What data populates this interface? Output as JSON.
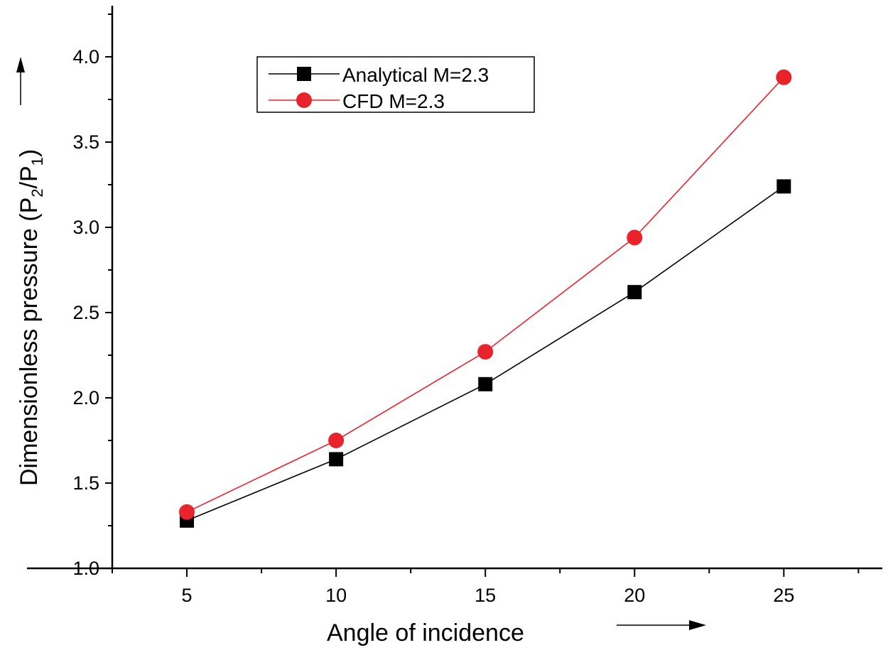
{
  "chart_data": {
    "type": "line",
    "title": "",
    "xlabel": "Angle of incidence",
    "ylabel": {
      "main": "Dimensionless pressure (P",
      "sub1": "2",
      "mid": "/P",
      "sub2": "1",
      "end": ")"
    },
    "x_ticks": [
      "5",
      "10",
      "15",
      "20",
      "25"
    ],
    "y_ticks": [
      "1.0",
      "1.5",
      "2.0",
      "2.5",
      "3.0",
      "3.5",
      "4.0"
    ],
    "xlim": [
      2.5,
      28.3
    ],
    "ylim": [
      1.0,
      4.3
    ],
    "grid": false,
    "legend_position": "top-center",
    "series": [
      {
        "name": "Analytical M=2.3",
        "marker": "square",
        "color": "#000000",
        "x": [
          5,
          10,
          15,
          20,
          25
        ],
        "values": [
          1.28,
          1.64,
          2.08,
          2.62,
          3.24
        ]
      },
      {
        "name": "CFD M=2.3",
        "marker": "circle",
        "color": "#e8232b",
        "x": [
          5,
          10,
          15,
          20,
          25
        ],
        "values": [
          1.33,
          1.75,
          2.27,
          2.94,
          3.88
        ]
      }
    ]
  }
}
